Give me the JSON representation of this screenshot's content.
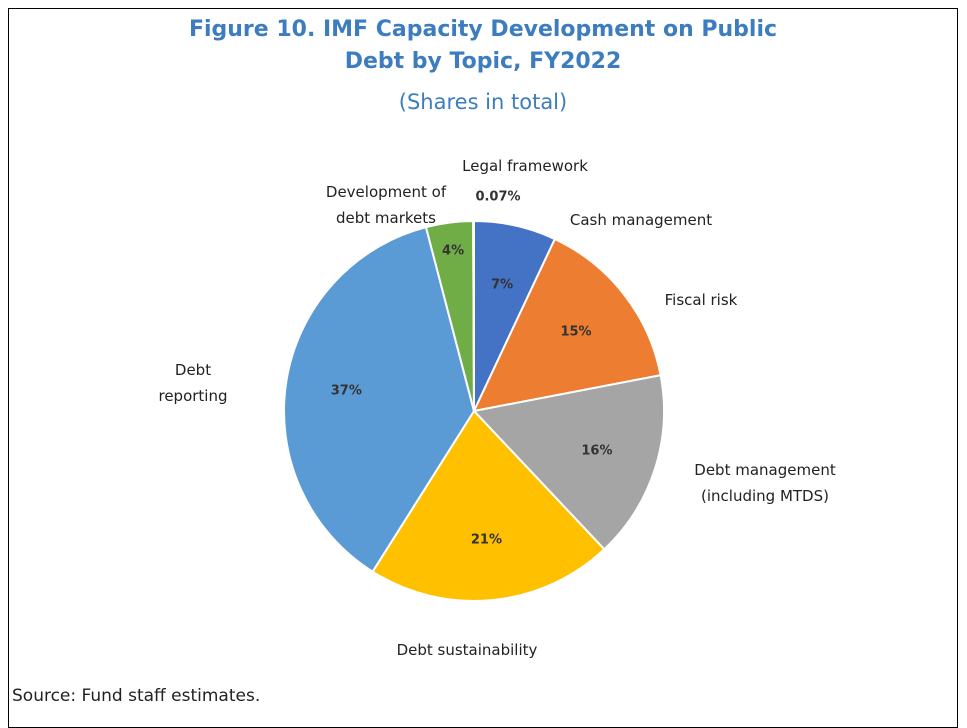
{
  "chart_data": {
    "type": "pie",
    "title": "Figure 10. IMF Capacity Development on Public Debt by Topic, FY2022",
    "subtitle": "(Shares in total)",
    "categories": [
      "Cash management",
      "Fiscal risk",
      "Debt management (including MTDS)",
      "Debt sustainability",
      "Debt reporting",
      "Development of debt markets",
      "Legal framework"
    ],
    "values": [
      7,
      15,
      16,
      21,
      37,
      4,
      0.07
    ],
    "value_labels": [
      "7%",
      "15%",
      "16%",
      "21%",
      "37%",
      "4%",
      "0.07%"
    ],
    "colors": [
      "#4472c4",
      "#ed7d31",
      "#a5a5a5",
      "#ffc000",
      "#5b9bd5",
      "#70ad47",
      "#7f7f7f"
    ],
    "source": "Source: Fund staff estimates."
  }
}
